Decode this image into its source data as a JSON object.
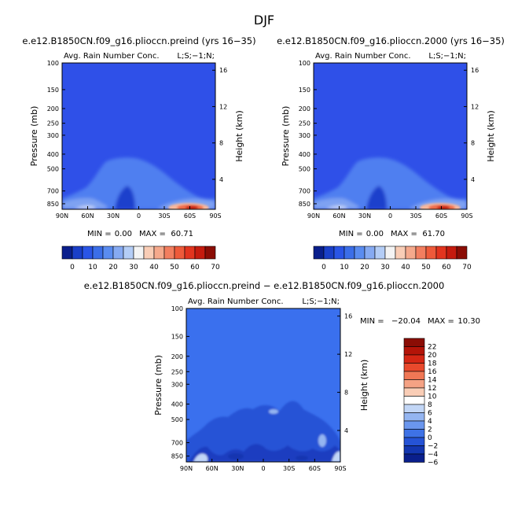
{
  "page_title": "DJF",
  "chart_data": [
    {
      "type": "heatmap",
      "title": "e.e12.B1850CN.f09_g16.plioccn.preind (yrs 16−35)",
      "subtitle_left": "Avg. Rain Number Conc.",
      "subtitle_right": "L;S;−1;N;",
      "xlabel": "",
      "ylabel": "Pressure (mb)",
      "ylabel_right": "Height (km)",
      "x_ticks": [
        "90N",
        "60N",
        "30N",
        "0",
        "30S",
        "60S",
        "90S"
      ],
      "y_ticks": [
        "100",
        "150",
        "200",
        "250",
        "300",
        "400",
        "500",
        "700",
        "850"
      ],
      "y_ticks_right": [
        "16",
        "12",
        "8",
        "4"
      ],
      "stats": {
        "min_label": "MIN =",
        "min": "0.00",
        "max_label": "MAX =",
        "max": "60.71"
      },
      "colorbar": {
        "orientation": "horizontal",
        "labels": [
          "0",
          "10",
          "20",
          "30",
          "40",
          "50",
          "60",
          "70"
        ]
      }
    },
    {
      "type": "heatmap",
      "title": "e.e12.B1850CN.f09_g16.plioccn.2000 (yrs 16−35)",
      "subtitle_left": "Avg. Rain Number Conc.",
      "subtitle_right": "L;S;−1;N;",
      "xlabel": "",
      "ylabel": "Pressure (mb)",
      "ylabel_right": "Height (km)",
      "x_ticks": [
        "90N",
        "60N",
        "30N",
        "0",
        "30S",
        "60S",
        "90S"
      ],
      "y_ticks": [
        "100",
        "150",
        "200",
        "250",
        "300",
        "400",
        "500",
        "700",
        "850"
      ],
      "y_ticks_right": [
        "16",
        "12",
        "8",
        "4"
      ],
      "stats": {
        "min_label": "MIN =",
        "min": "0.00",
        "max_label": "MAX =",
        "max": "61.70"
      },
      "colorbar": {
        "orientation": "horizontal",
        "labels": [
          "0",
          "10",
          "20",
          "30",
          "40",
          "50",
          "60",
          "70"
        ]
      }
    },
    {
      "type": "heatmap",
      "title": "e.e12.B1850CN.f09_g16.plioccn.preind − e.e12.B1850CN.f09_g16.plioccn.2000",
      "subtitle_left": "Avg. Rain Number Conc.",
      "subtitle_right": "L;S;−1;N;",
      "xlabel": "",
      "ylabel": "Pressure (mb)",
      "ylabel_right": "Height (km)",
      "x_ticks": [
        "90N",
        "60N",
        "30N",
        "0",
        "30S",
        "60S",
        "90S"
      ],
      "y_ticks": [
        "100",
        "150",
        "200",
        "250",
        "300",
        "400",
        "500",
        "700",
        "850"
      ],
      "y_ticks_right": [
        "16",
        "12",
        "8",
        "4"
      ],
      "stats": {
        "min_label": "MIN =",
        "min": "−20.04",
        "max_label": "MAX =",
        "max": "10.30"
      },
      "colorbar": {
        "orientation": "vertical",
        "labels": [
          "22",
          "20",
          "18",
          "16",
          "14",
          "12",
          "10",
          "8",
          "6",
          "4",
          "2",
          "0",
          "−2",
          "−4",
          "−6"
        ]
      }
    }
  ],
  "colors": {
    "sequential": [
      "#0a1f8c",
      "#1a3fc8",
      "#2a55e6",
      "#3b6ee8",
      "#5a8cf0",
      "#86aaf2",
      "#b4cdf6",
      "#f4f4f4",
      "#f9cdb6",
      "#f5a98c",
      "#f27e5f",
      "#ee5a3a",
      "#e2341e",
      "#c51b0e",
      "#8b0d05"
    ],
    "diverging": [
      "#8b0d05",
      "#b41408",
      "#d52614",
      "#e9492c",
      "#f07755",
      "#f5a284",
      "#f9cdb6",
      "#ffffff",
      "#c2d6f6",
      "#94b5f1",
      "#6a96ee",
      "#3e72e6",
      "#2553d6",
      "#1336b0",
      "#0a1f8c"
    ],
    "field_base": "#2f50e8",
    "diff_base": "#3a70ee"
  }
}
